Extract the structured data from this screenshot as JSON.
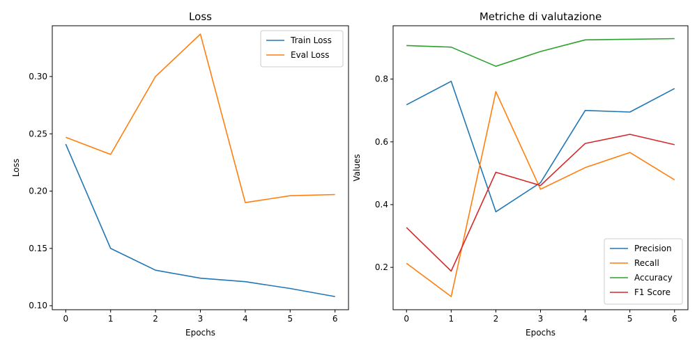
{
  "chart_data": [
    {
      "type": "line",
      "title": "Loss",
      "xlabel": "Epochs",
      "ylabel": "Loss",
      "x": [
        0,
        1,
        2,
        3,
        4,
        5,
        6
      ],
      "xlim": [
        -0.3,
        6.3
      ],
      "ylim": [
        0.0965,
        0.3443
      ],
      "xticks": [
        "0",
        "1",
        "2",
        "3",
        "4",
        "5",
        "6"
      ],
      "yticks": [
        0.1,
        0.15,
        0.2,
        0.25,
        0.3
      ],
      "ytick_labels": [
        "0.10",
        "0.15",
        "0.20",
        "0.25",
        "0.30"
      ],
      "legend_position": "upper right",
      "grid": false,
      "series": [
        {
          "name": "Train Loss",
          "color": "#1f77b4",
          "values": [
            0.241,
            0.15,
            0.131,
            0.124,
            0.121,
            0.115,
            0.108
          ]
        },
        {
          "name": "Eval Loss",
          "color": "#ff7f0e",
          "values": [
            0.247,
            0.232,
            0.3,
            0.337,
            0.19,
            0.196,
            0.197
          ]
        }
      ]
    },
    {
      "type": "line",
      "title": "Metriche di valutazione",
      "xlabel": "Epochs",
      "ylabel": "Values",
      "x": [
        0,
        1,
        2,
        3,
        4,
        5,
        6
      ],
      "xlim": [
        -0.3,
        6.3
      ],
      "ylim": [
        0.065,
        0.97
      ],
      "xticks": [
        "0",
        "1",
        "2",
        "3",
        "4",
        "5",
        "6"
      ],
      "yticks": [
        0.2,
        0.4,
        0.6,
        0.8
      ],
      "ytick_labels": [
        "0.2",
        "0.4",
        "0.6",
        "0.8"
      ],
      "legend_position": "lower right",
      "grid": false,
      "series": [
        {
          "name": "Precision",
          "color": "#1f77b4",
          "values": [
            0.718,
            0.793,
            0.377,
            0.47,
            0.7,
            0.695,
            0.77
          ]
        },
        {
          "name": "Recall",
          "color": "#ff7f0e",
          "values": [
            0.213,
            0.107,
            0.76,
            0.449,
            0.518,
            0.566,
            0.479
          ]
        },
        {
          "name": "Accuracy",
          "color": "#2ca02c",
          "values": [
            0.907,
            0.902,
            0.841,
            0.888,
            0.925,
            0.927,
            0.929
          ]
        },
        {
          "name": "F1 Score",
          "color": "#d62728",
          "values": [
            0.327,
            0.188,
            0.503,
            0.461,
            0.595,
            0.624,
            0.591
          ]
        }
      ]
    }
  ]
}
